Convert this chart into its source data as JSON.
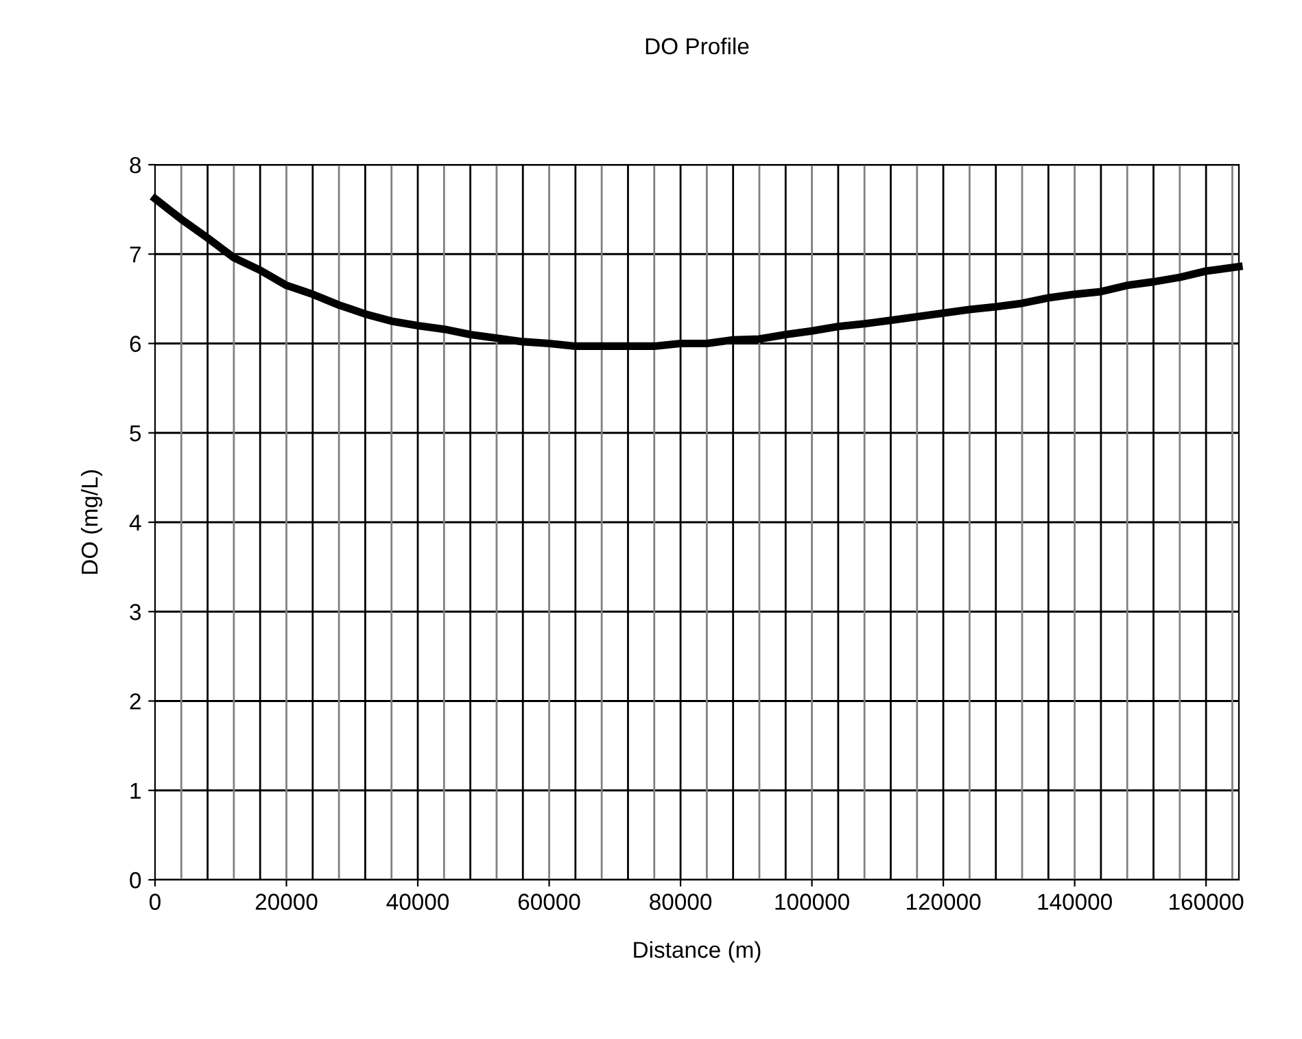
{
  "chart_data": {
    "type": "line",
    "title": "DO Profile",
    "xlabel": "Distance (m)",
    "ylabel": "DO (mg/L)",
    "x": [
      0,
      4000,
      8000,
      12000,
      16000,
      20000,
      24000,
      28000,
      32000,
      36000,
      40000,
      44000,
      48000,
      52000,
      56000,
      60000,
      64000,
      68000,
      72000,
      76000,
      80000,
      84000,
      88000,
      92000,
      96000,
      100000,
      104000,
      108000,
      112000,
      116000,
      120000,
      124000,
      128000,
      132000,
      136000,
      140000,
      144000,
      148000,
      152000,
      156000,
      160000,
      165000
    ],
    "series": [
      {
        "color": "#000000",
        "values": [
          7.62,
          7.39,
          7.18,
          6.96,
          6.82,
          6.65,
          6.55,
          6.43,
          6.33,
          6.25,
          6.2,
          6.16,
          6.1,
          6.06,
          6.02,
          6.0,
          5.97,
          5.97,
          5.97,
          5.97,
          6.0,
          6.0,
          6.04,
          6.05,
          6.1,
          6.14,
          6.19,
          6.22,
          6.26,
          6.3,
          6.34,
          6.38,
          6.41,
          6.45,
          6.51,
          6.55,
          6.58,
          6.65,
          6.69,
          6.74,
          6.81,
          6.86
        ]
      }
    ],
    "xlim": [
      0,
      165000
    ],
    "xticks": [
      0,
      20000,
      40000,
      60000,
      80000,
      100000,
      120000,
      140000,
      160000
    ],
    "ylim": [
      0,
      8
    ],
    "yticks": [
      0,
      1,
      2,
      3,
      4,
      5,
      6,
      7,
      8
    ],
    "grid": true,
    "legend": false,
    "marker": "none",
    "line_style": "solid"
  }
}
